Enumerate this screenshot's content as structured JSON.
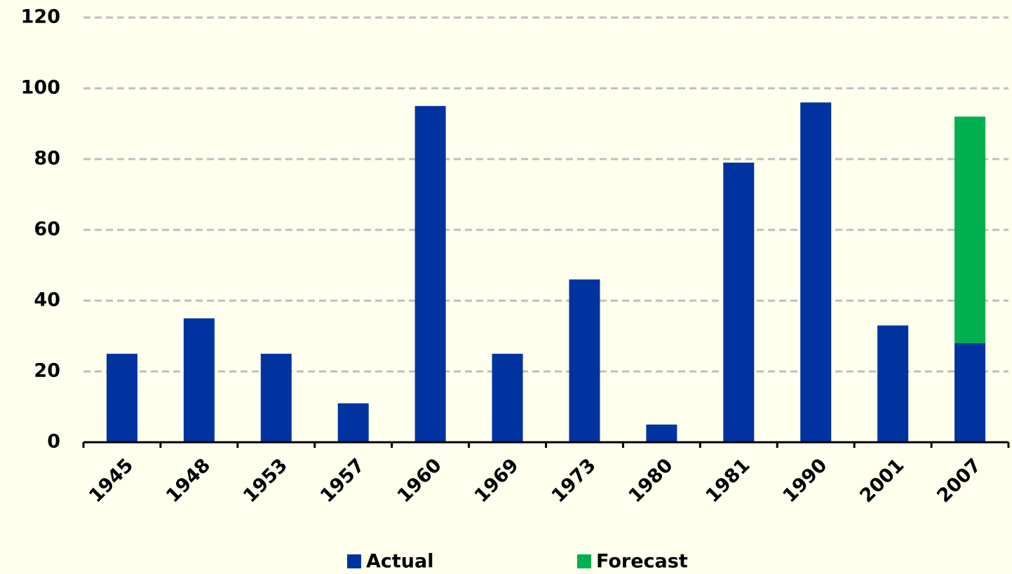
{
  "chart_data": {
    "type": "stacked_bar",
    "categories": [
      "1945",
      "1948",
      "1953",
      "1957",
      "1960",
      "1969",
      "1973",
      "1980",
      "1981",
      "1990",
      "2001",
      "2007"
    ],
    "series": [
      {
        "name": "Actual",
        "color": "#0033a0",
        "values": [
          25,
          35,
          25,
          11,
          95,
          25,
          46,
          5,
          79,
          96,
          33,
          28
        ]
      },
      {
        "name": "Forecast",
        "color": "#00b050",
        "values": [
          null,
          null,
          null,
          null,
          null,
          null,
          null,
          null,
          null,
          null,
          null,
          64
        ]
      }
    ],
    "ylim": [
      0,
      120
    ],
    "yticks": [
      0,
      20,
      40,
      60,
      80,
      100,
      120
    ],
    "grid": true,
    "legend": "bottom"
  }
}
